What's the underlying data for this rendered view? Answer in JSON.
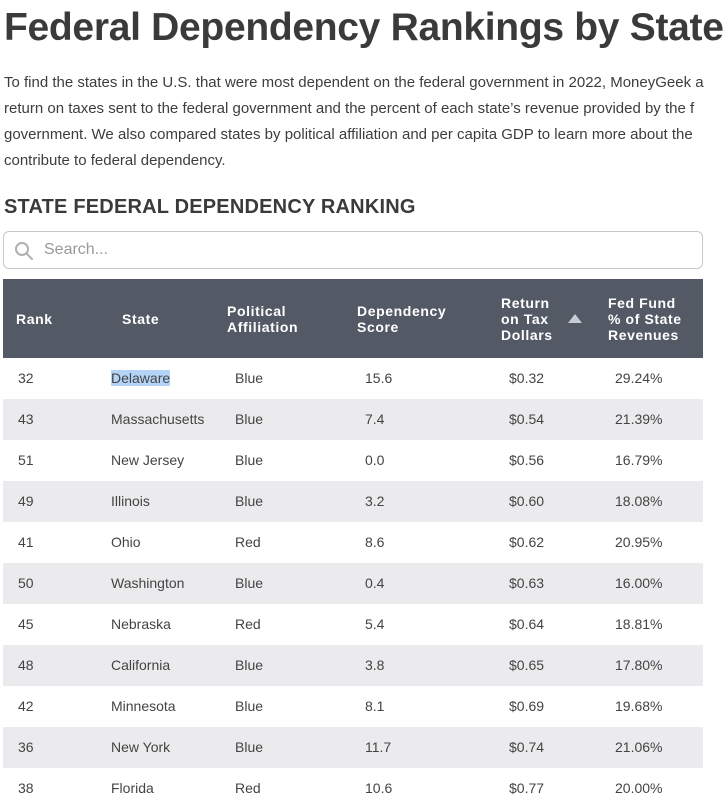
{
  "page": {
    "title": "Federal Dependency Rankings by State",
    "intro_lines": [
      "To find the states in the U.S. that were most dependent on the federal government in 2022, MoneyGeek a",
      "return on taxes sent to the federal government and the percent of each state’s revenue provided by the f",
      "government. We also compared states by political affiliation and per capita GDP to learn more about the",
      "contribute to federal dependency."
    ],
    "section_heading": "STATE FEDERAL DEPENDENCY RANKING"
  },
  "search": {
    "placeholder": "Search...",
    "icon": "search-icon"
  },
  "table": {
    "header": {
      "rank": "Rank",
      "state": "State",
      "party_line1": "Political",
      "party_line2": "Affiliation",
      "score_line1": "Dependency",
      "score_line2": "Score",
      "return_line1": "Return",
      "return_line2": "on Tax",
      "return_line3": "Dollars",
      "fund_line1": "Fed Fund",
      "fund_line2": "% of State",
      "fund_line3": "Revenues",
      "sorted_column": "Return on Tax Dollars",
      "sort_direction": "ascending"
    },
    "rows": [
      {
        "rank": "32",
        "state": "Delaware",
        "party": "Blue",
        "score": "15.6",
        "return": "$0.32",
        "fund": "29.24%"
      },
      {
        "rank": "43",
        "state": "Massachusetts",
        "party": "Blue",
        "score": "7.4",
        "return": "$0.54",
        "fund": "21.39%"
      },
      {
        "rank": "51",
        "state": "New Jersey",
        "party": "Blue",
        "score": "0.0",
        "return": "$0.56",
        "fund": "16.79%"
      },
      {
        "rank": "49",
        "state": "Illinois",
        "party": "Blue",
        "score": "3.2",
        "return": "$0.60",
        "fund": "18.08%"
      },
      {
        "rank": "41",
        "state": "Ohio",
        "party": "Red",
        "score": "8.6",
        "return": "$0.62",
        "fund": "20.95%"
      },
      {
        "rank": "50",
        "state": "Washington",
        "party": "Blue",
        "score": "0.4",
        "return": "$0.63",
        "fund": "16.00%"
      },
      {
        "rank": "45",
        "state": "Nebraska",
        "party": "Red",
        "score": "5.4",
        "return": "$0.64",
        "fund": "18.81%"
      },
      {
        "rank": "48",
        "state": "California",
        "party": "Blue",
        "score": "3.8",
        "return": "$0.65",
        "fund": "17.80%"
      },
      {
        "rank": "42",
        "state": "Minnesota",
        "party": "Blue",
        "score": "8.1",
        "return": "$0.69",
        "fund": "19.68%"
      },
      {
        "rank": "36",
        "state": "New York",
        "party": "Blue",
        "score": "11.7",
        "return": "$0.74",
        "fund": "21.06%"
      },
      {
        "rank": "38",
        "state": "Florida",
        "party": "Red",
        "score": "10.6",
        "return": "$0.77",
        "fund": "20.00%"
      }
    ]
  },
  "colors": {
    "header_bg": "#535a66",
    "row_alt_bg": "#ebebed",
    "selection_highlight": "#b3d4f7"
  }
}
